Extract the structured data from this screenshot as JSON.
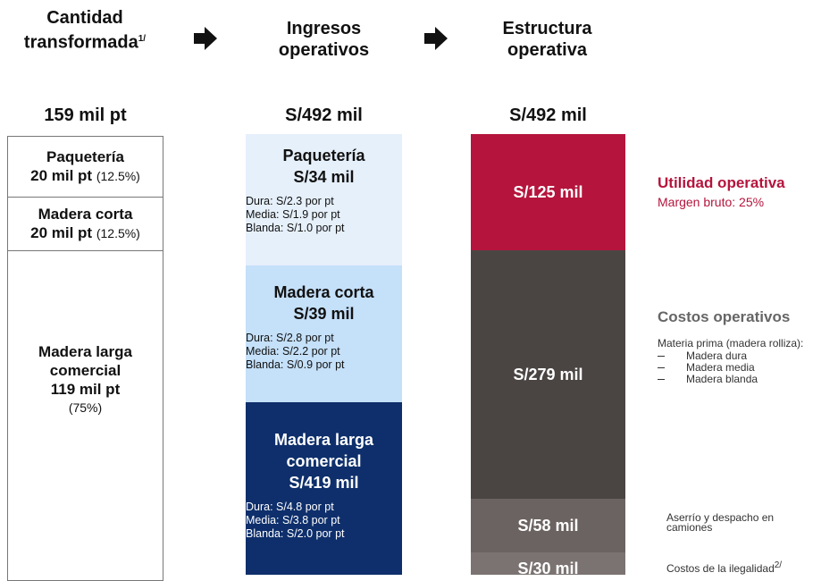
{
  "columns": [
    {
      "header": "Cantidad transformada",
      "header_note": "1/",
      "total": "159 mil pt"
    },
    {
      "header": "Ingresos operativos",
      "total": "S/492 mil"
    },
    {
      "header": "Estructura operativa",
      "total": "S/492 mil"
    }
  ],
  "quantity": [
    {
      "name": "Paquetería",
      "amount": "20 mil pt",
      "share": "(12.5%)"
    },
    {
      "name": "Madera corta",
      "amount": "20 mil pt",
      "share": "(12.5%)"
    },
    {
      "name": "Madera larga comercial",
      "amount": "119 mil pt",
      "share": "(75%)"
    }
  ],
  "revenue": [
    {
      "name": "Paquetería",
      "amount": "S/34 mil",
      "prices": [
        "Dura: S/2.3 por pt",
        "Media: S/1.9 por pt",
        "Blanda: S/1.0 por pt"
      ]
    },
    {
      "name": "Madera corta",
      "amount": "S/39 mil",
      "prices": [
        "Dura: S/2.8 por pt",
        "Media: S/2.2 por pt",
        "Blanda: S/0.9 por pt"
      ]
    },
    {
      "name": "Madera larga comercial",
      "amount": "S/419 mil",
      "prices": [
        "Dura: S/4.8 por pt",
        "Media: S/3.8 por pt",
        "Blanda: S/2.0 por pt"
      ]
    }
  ],
  "structure": [
    {
      "amount": "S/125 mil"
    },
    {
      "amount": "S/279 mil"
    },
    {
      "amount": "S/58 mil"
    },
    {
      "amount": "S/30 mil"
    }
  ],
  "notes": {
    "profit_title": "Utilidad operativa",
    "profit_margin": "Margen bruto: 25%",
    "costs_title": "Costos operativos",
    "raw_material": "Materia prima (madera rolliza):",
    "raw_items": [
      "Madera dura",
      "Madera media",
      "Madera blanda"
    ],
    "sawing": "Aserrío y despacho en camiones",
    "illegality": "Costos de la ilegalidad",
    "illegality_note": "2/"
  }
}
